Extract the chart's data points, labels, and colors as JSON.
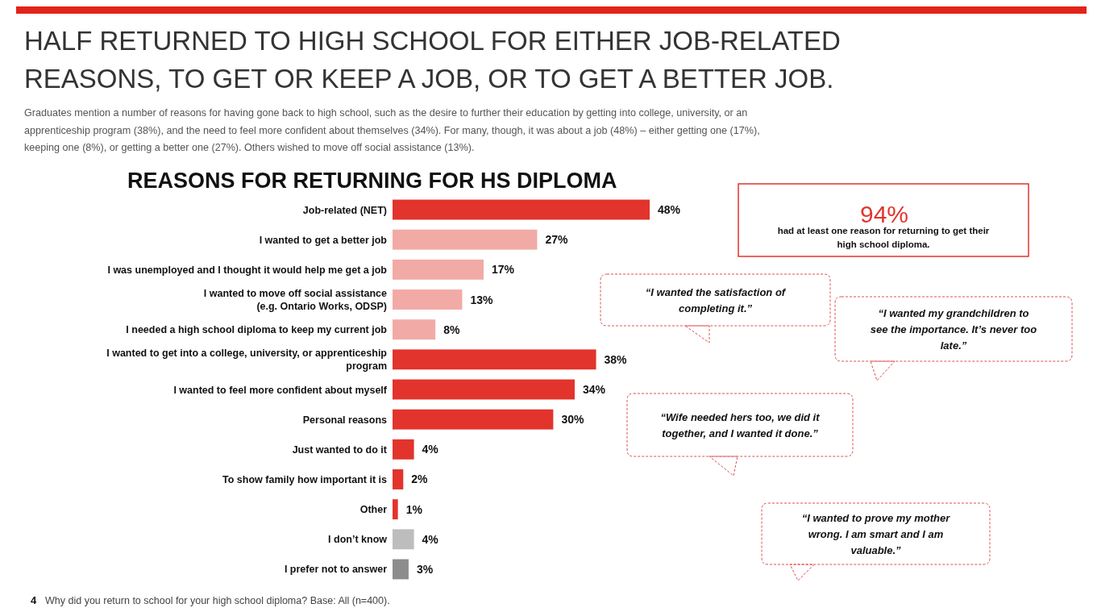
{
  "chart_data": {
    "type": "bar",
    "orientation": "horizontal",
    "title": "HALF RETURNED TO HIGH SCHOOL FOR EITHER JOB-RELATED\nREASONS, TO GET OR KEEP A JOB, OR TO GET A BETTER JOB.",
    "subtitle": "Graduates mention a number of reasons for having gone back to high school, such as the desire to further their education by getting into college, university, or an\napprenticeship program (38%), and the need to feel more confident about themselves (34%). For many, though, it was about a job (48%) – either getting one (17%),\nkeeping one (8%), or getting a better one (27%). Others wished to move off social assistance (13%).",
    "categories": [
      "Job-related (NET)",
      "I wanted to get a better job",
      "I was unemployed and I thought it would help me get a job",
      "I wanted to move off social assistance\n(e.g. Ontario Works, ODSP)",
      "I needed a high school diploma to keep my current job",
      "I wanted to get into a college, university, or apprenticeship\nprogram",
      "I wanted to feel more confident about myself",
      "Personal reasons",
      "Just wanted to do it",
      "To show family how important it is",
      "Other",
      "I don’t know",
      "I prefer not to answer"
    ],
    "values": [
      48,
      27,
      17,
      13,
      8,
      38,
      34,
      30,
      4,
      2,
      1,
      4,
      3
    ],
    "colors": [
      "#e2342c",
      "#f2aaa6",
      "#f2aaa6",
      "#f2aaa6",
      "#f2aaa6",
      "#e2342c",
      "#e2342c",
      "#e2342c",
      "#e2342c",
      "#e2342c",
      "#e2342c",
      "#bdbdbd",
      "#8c8c8c"
    ],
    "value_labels": [
      "48%",
      "27%",
      "17%",
      "13%",
      "8%",
      "38%",
      "34%",
      "30%",
      "4%",
      "2%",
      "1%",
      "4%",
      "3%"
    ],
    "annotations": [
      "REASONS FOR RETURNING FOR HS DIPLOMA",
      "94%",
      "had at least one reason for returning to get their\nhigh school diploma.",
      "“I wanted the satisfaction of\ncompleting it.”",
      "“I wanted my grandchildren to\nsee the importance. It’s never too\nlate.”",
      "“Wife needed hers too, we did it\ntogether, and I wanted it done.”",
      "“I wanted to prove my mother\nwrong. I am smart and I am\nvaluable.”",
      "4",
      "Why did you return to school for your high school diploma? Base: All (n=400)."
    ]
  }
}
